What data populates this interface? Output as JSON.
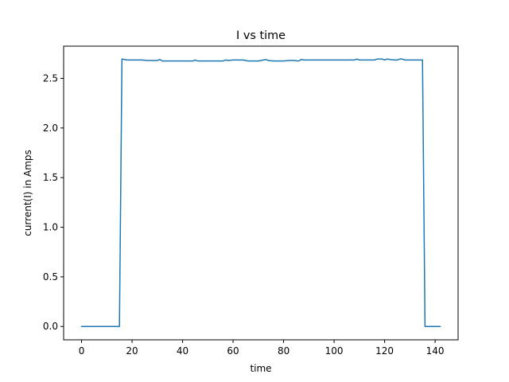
{
  "chart_data": {
    "type": "line",
    "title": "I vs time",
    "xlabel": "time",
    "ylabel": "current(I) in Amps",
    "xlim": [
      -7.1,
      149.1
    ],
    "ylim": [
      -0.1345,
      2.8245
    ],
    "xticks": [
      0,
      20,
      40,
      60,
      80,
      100,
      120,
      140
    ],
    "yticks": [
      0.0,
      0.5,
      1.0,
      1.5,
      2.0,
      2.5
    ],
    "xtick_labels": [
      "0",
      "20",
      "40",
      "60",
      "80",
      "100",
      "120",
      "140"
    ],
    "ytick_labels": [
      "0.0",
      "0.5",
      "1.0",
      "1.5",
      "2.0",
      "2.5"
    ],
    "grid": false,
    "colors": {
      "line": "#1f77b4"
    },
    "series": [
      {
        "x": [
          0,
          15,
          16,
          17,
          18,
          20,
          22,
          24,
          26,
          28,
          30,
          31,
          32,
          34,
          36,
          38,
          40,
          42,
          44,
          45,
          46,
          48,
          50,
          52,
          54,
          56,
          57,
          58,
          60,
          62,
          64,
          66,
          68,
          70,
          72,
          73,
          74,
          76,
          78,
          80,
          82,
          84,
          86,
          87,
          88,
          90,
          92,
          94,
          96,
          98,
          100,
          102,
          104,
          106,
          108,
          109,
          110,
          112,
          114,
          116,
          117,
          118,
          119,
          120,
          121,
          122,
          124,
          125,
          126,
          127,
          128,
          130,
          132,
          134,
          135,
          136,
          138,
          140,
          142
        ],
        "y": [
          0,
          0,
          2.695,
          2.69,
          2.685,
          2.685,
          2.685,
          2.685,
          2.68,
          2.68,
          2.68,
          2.69,
          2.675,
          2.675,
          2.675,
          2.675,
          2.675,
          2.675,
          2.675,
          2.685,
          2.675,
          2.675,
          2.675,
          2.675,
          2.675,
          2.675,
          2.685,
          2.68,
          2.685,
          2.685,
          2.685,
          2.675,
          2.675,
          2.675,
          2.685,
          2.69,
          2.68,
          2.675,
          2.675,
          2.675,
          2.68,
          2.68,
          2.675,
          2.69,
          2.685,
          2.685,
          2.685,
          2.685,
          2.685,
          2.685,
          2.685,
          2.685,
          2.685,
          2.685,
          2.685,
          2.695,
          2.685,
          2.685,
          2.685,
          2.685,
          2.695,
          2.695,
          2.695,
          2.685,
          2.695,
          2.69,
          2.685,
          2.685,
          2.695,
          2.695,
          2.685,
          2.685,
          2.685,
          2.685,
          2.685,
          0,
          0,
          0,
          0
        ]
      }
    ]
  }
}
